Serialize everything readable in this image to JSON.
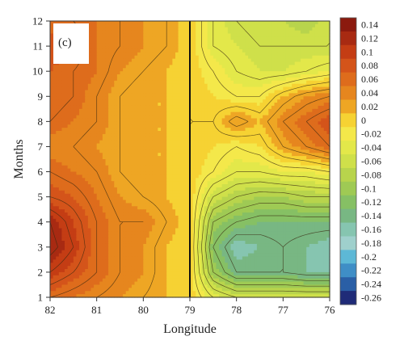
{
  "chart_data": {
    "type": "heatmap",
    "panel_label": "(c)",
    "xlabel": "Longitude",
    "ylabel": "Months",
    "x_range": [
      82,
      76
    ],
    "y_range": [
      1,
      12
    ],
    "x_ticks": [
      "82",
      "81",
      "80",
      "79",
      "78",
      "77",
      "76"
    ],
    "y_ticks": [
      "1",
      "2",
      "3",
      "4",
      "5",
      "6",
      "7",
      "8",
      "9",
      "10",
      "11",
      "12"
    ],
    "reference_line_x": 79,
    "colorbar": {
      "levels": [
        "0.14",
        "0.12",
        "0.1",
        "0.08",
        "0.06",
        "0.04",
        "0.02",
        "0",
        "-0.02",
        "-0.04",
        "-0.06",
        "-0.08",
        "-0.1",
        "-0.12",
        "-0.14",
        "-0.16",
        "-0.18",
        "-0.2",
        "-0.22",
        "-0.24",
        "-0.26"
      ],
      "colors": [
        "#8b1a0e",
        "#a82a12",
        "#c43d14",
        "#d4541a",
        "#de6c1c",
        "#e6861e",
        "#eea624",
        "#f6d233",
        "#f4e84a",
        "#e3e84a",
        "#cfe04a",
        "#b8d44c",
        "#9fca54",
        "#86c064",
        "#78b783",
        "#86c5b0",
        "#9fd0cc",
        "#5db8d6",
        "#3f8ec6",
        "#2a5fa6",
        "#1f2b78"
      ]
    },
    "grid": false,
    "legend_placement": "right",
    "values_grid": {
      "x": [
        82,
        81.5,
        81,
        80.5,
        80,
        79.5,
        79,
        78.5,
        78,
        77.5,
        77,
        76.5,
        76
      ],
      "y": [
        1,
        2,
        3,
        4,
        5,
        6,
        7,
        8,
        9,
        10,
        11,
        12
      ],
      "z": [
        [
          0.06,
          0.05,
          0.04,
          0.03,
          0.02,
          0.01,
          0.0,
          -0.04,
          -0.06,
          -0.06,
          -0.06,
          -0.06,
          -0.06
        ],
        [
          0.1,
          0.08,
          0.06,
          0.04,
          0.03,
          0.01,
          0.0,
          -0.1,
          -0.14,
          -0.14,
          -0.14,
          -0.15,
          -0.15
        ],
        [
          0.13,
          0.1,
          0.06,
          0.04,
          0.03,
          0.01,
          0.0,
          -0.12,
          -0.16,
          -0.15,
          -0.14,
          -0.15,
          -0.16
        ],
        [
          0.12,
          0.09,
          0.06,
          0.04,
          0.04,
          0.02,
          0.0,
          -0.1,
          -0.12,
          -0.13,
          -0.13,
          -0.13,
          -0.13
        ],
        [
          0.08,
          0.07,
          0.05,
          0.03,
          0.02,
          0.01,
          0.0,
          -0.06,
          -0.08,
          -0.09,
          -0.09,
          -0.08,
          -0.08
        ],
        [
          0.06,
          0.05,
          0.04,
          0.02,
          0.01,
          0.01,
          0.0,
          -0.02,
          -0.04,
          -0.04,
          -0.03,
          -0.03,
          -0.02
        ],
        [
          0.04,
          0.04,
          0.03,
          0.02,
          0.01,
          0.01,
          0.0,
          -0.01,
          -0.02,
          -0.01,
          0.02,
          0.04,
          0.06
        ],
        [
          0.06,
          0.05,
          0.04,
          0.02,
          0.01,
          0.01,
          0.0,
          0.0,
          0.03,
          0.01,
          0.04,
          0.06,
          0.08
        ],
        [
          0.07,
          0.06,
          0.04,
          0.02,
          0.01,
          0.01,
          0.0,
          -0.01,
          -0.02,
          -0.02,
          0.01,
          0.03,
          0.04
        ],
        [
          0.07,
          0.06,
          0.05,
          0.03,
          0.02,
          0.01,
          0.0,
          -0.02,
          -0.04,
          -0.05,
          -0.05,
          -0.04,
          -0.03
        ],
        [
          0.08,
          0.07,
          0.05,
          0.04,
          0.03,
          0.02,
          0.0,
          -0.04,
          -0.05,
          -0.06,
          -0.06,
          -0.06,
          -0.06
        ],
        [
          0.06,
          0.06,
          0.05,
          0.04,
          0.03,
          0.02,
          0.0,
          -0.04,
          -0.06,
          -0.07,
          -0.07,
          -0.08,
          -0.06
        ]
      ]
    }
  }
}
